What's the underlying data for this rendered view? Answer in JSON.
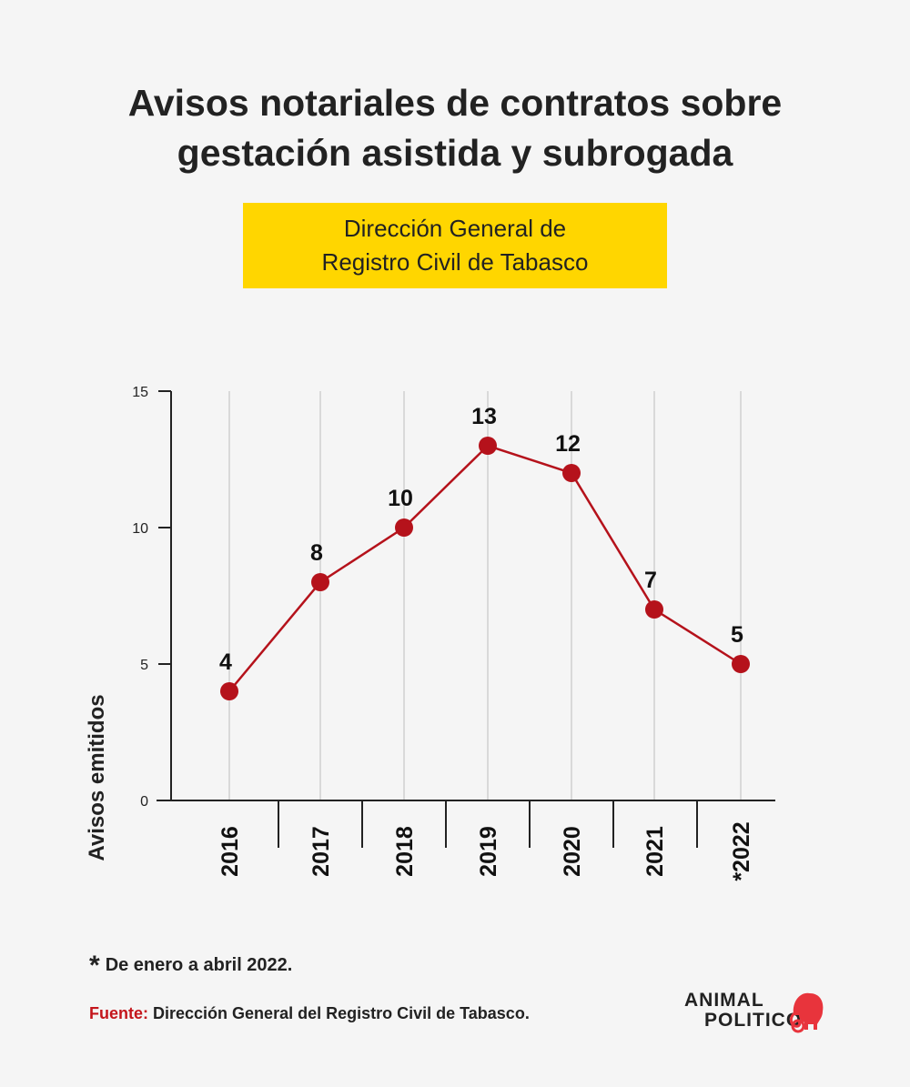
{
  "title": {
    "line1": "Avisos notariales de contratos sobre",
    "line2": "gestación asistida y subrogada"
  },
  "badge": {
    "line1": "Dirección General de",
    "line2": "Registro Civil de Tabasco"
  },
  "chart_data": {
    "type": "line",
    "categories": [
      "2016",
      "2017",
      "2018",
      "2019",
      "2020",
      "2021",
      "*2022"
    ],
    "values": [
      4,
      8,
      10,
      13,
      12,
      7,
      5
    ],
    "data_labels": [
      "4",
      "8",
      "10",
      "13",
      "12",
      "7",
      "5"
    ],
    "ylabel": "Avisos emitidos",
    "xlabel": "",
    "ylim": [
      0,
      15
    ],
    "yticks": [
      0,
      5,
      10,
      15
    ],
    "grid": "vertical",
    "line_color": "#b5121b",
    "grid_color": "#d9d9d9"
  },
  "footnote": {
    "star": "*",
    "text": "De enero a abril 2022."
  },
  "source": {
    "label": "Fuente:",
    "text": "Dirección General del Registro Civil de Tabasco."
  },
  "logo": {
    "line1": "ANIMAL",
    "line2": "POLITICO",
    "icon": "elephant-icon",
    "accent": "#e8343c"
  }
}
